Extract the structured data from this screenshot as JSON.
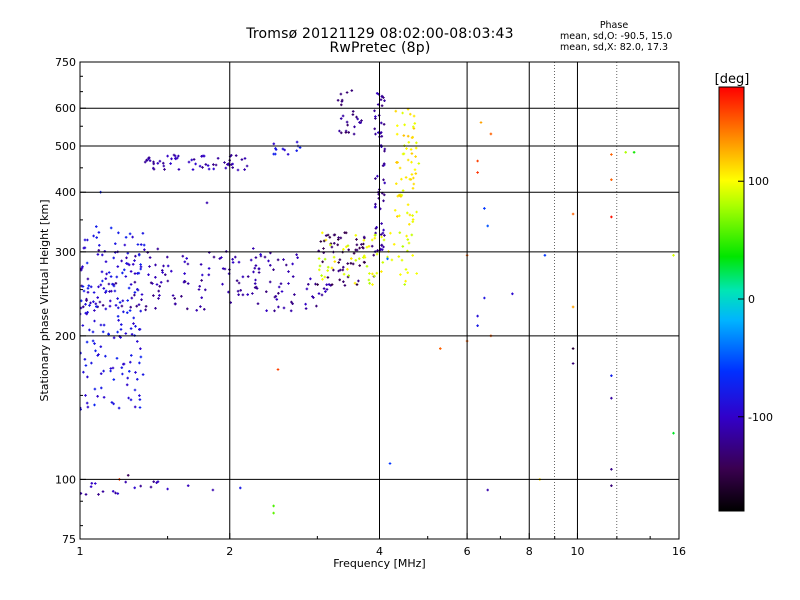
{
  "title": {
    "line1": "Tromsø 20121129 08:02:00-08:03:43",
    "line2": "RwPretec (8p)"
  },
  "phase_box": {
    "header": "Phase",
    "line_o": "mean, sd,O: -90.5, 15.0",
    "line_x": "mean, sd,X:  82.0, 17.3"
  },
  "colorbar": {
    "label": "[deg]",
    "ticks": [
      "100",
      "0",
      "-100"
    ]
  },
  "chart_data": {
    "type": "scatter",
    "xlabel": "Frequency [MHz]",
    "ylabel": "Stationary phase Virtual Height [km]",
    "xscale": "log",
    "yscale": "log",
    "xlim": [
      1,
      16
    ],
    "ylim": [
      75,
      750
    ],
    "x_ticks": [
      "1",
      "2",
      "4",
      "6",
      "8",
      "10",
      "16"
    ],
    "y_ticks": [
      "75",
      "100",
      "200",
      "300",
      "400",
      "500",
      "600",
      "750"
    ],
    "x_gridlines_mhz": [
      2,
      4,
      6,
      8,
      10
    ],
    "x_minor_gridlines_mhz": [
      9,
      12
    ],
    "y_gridlines_km": [
      100,
      200,
      300,
      400,
      500,
      600
    ],
    "colormap": "rainbow phase, -180 (black) to +180 (red)",
    "phase_range_deg": [
      -180,
      180
    ],
    "clusters": [
      {
        "name": "",
        "f_range_mhz": [
          1.0,
          2.75
        ],
        "h_range_km": [
          265,
          305
        ],
        "phase_deg": -110,
        "density": 80
      },
      {
        "name": "",
        "f_range_mhz": [
          1.0,
          3.2
        ],
        "h_range_km": [
          225,
          265
        ],
        "phase_deg": -115,
        "density": 110
      },
      {
        "name": "",
        "f_range_mhz": [
          1.0,
          1.35
        ],
        "h_range_km": [
          140,
          340
        ],
        "phase_deg": -85,
        "density": 170
      },
      {
        "name": "",
        "f_range_mhz": [
          1.35,
          2.2
        ],
        "h_range_km": [
          445,
          480
        ],
        "phase_deg": -110,
        "density": 60
      },
      {
        "name": "",
        "f_range_mhz": [
          2.4,
          2.8
        ],
        "h_range_km": [
          480,
          510
        ],
        "phase_deg": -85,
        "density": 12
      },
      {
        "name": "",
        "f_range_mhz": [
          3.0,
          3.9
        ],
        "h_range_km": [
          255,
          330
        ],
        "phase_deg": -140,
        "density": 60
      },
      {
        "name": "",
        "f_range_mhz": [
          3.3,
          3.7
        ],
        "h_range_km": [
          520,
          660
        ],
        "phase_deg": -125,
        "density": 25
      },
      {
        "name": "",
        "f_range_mhz": [
          3.9,
          4.1
        ],
        "h_range_km": [
          300,
          660
        ],
        "phase_deg": -115,
        "density": 60
      },
      {
        "name": "",
        "f_range_mhz": [
          3.0,
          4.8
        ],
        "h_range_km": [
          255,
          330
        ],
        "phase_deg": 95,
        "density": 70
      },
      {
        "name": "",
        "f_range_mhz": [
          4.3,
          4.8
        ],
        "h_range_km": [
          340,
          600
        ],
        "phase_deg": 105,
        "density": 60
      },
      {
        "name": "",
        "f_range_mhz": [
          1.0,
          1.6
        ],
        "h_range_km": [
          93,
          99
        ],
        "phase_deg": -110,
        "density": 18
      }
    ],
    "scattered_points": [
      {
        "f": 2.45,
        "h": 88,
        "phase": 55
      },
      {
        "f": 2.45,
        "h": 85,
        "phase": 60
      },
      {
        "f": 2.5,
        "h": 170,
        "phase": 160
      },
      {
        "f": 4.15,
        "h": 290,
        "phase": -40
      },
      {
        "f": 4.2,
        "h": 108,
        "phase": -60
      },
      {
        "f": 5.3,
        "h": 188,
        "phase": 150
      },
      {
        "f": 6.0,
        "h": 295,
        "phase": 150
      },
      {
        "f": 6.0,
        "h": 195,
        "phase": 150
      },
      {
        "f": 6.3,
        "h": 440,
        "phase": 165
      },
      {
        "f": 6.3,
        "h": 465,
        "phase": 160
      },
      {
        "f": 6.4,
        "h": 560,
        "phase": 130
      },
      {
        "f": 6.5,
        "h": 370,
        "phase": -60
      },
      {
        "f": 6.5,
        "h": 240,
        "phase": -85
      },
      {
        "f": 6.6,
        "h": 340,
        "phase": -50
      },
      {
        "f": 6.6,
        "h": 95,
        "phase": -110
      },
      {
        "f": 6.7,
        "h": 530,
        "phase": 150
      },
      {
        "f": 6.7,
        "h": 200,
        "phase": 150
      },
      {
        "f": 6.3,
        "h": 220,
        "phase": -90
      },
      {
        "f": 6.3,
        "h": 210,
        "phase": -80
      },
      {
        "f": 7.4,
        "h": 245,
        "phase": -95
      },
      {
        "f": 8.4,
        "h": 100,
        "phase": 110
      },
      {
        "f": 8.6,
        "h": 295,
        "phase": -60
      },
      {
        "f": 9.8,
        "h": 360,
        "phase": 150
      },
      {
        "f": 9.8,
        "h": 230,
        "phase": 130
      },
      {
        "f": 9.8,
        "h": 188,
        "phase": -155
      },
      {
        "f": 9.8,
        "h": 175,
        "phase": -130
      },
      {
        "f": 11.7,
        "h": 480,
        "phase": 150
      },
      {
        "f": 11.7,
        "h": 425,
        "phase": 150
      },
      {
        "f": 11.7,
        "h": 355,
        "phase": 175
      },
      {
        "f": 11.7,
        "h": 165,
        "phase": -75
      },
      {
        "f": 11.7,
        "h": 148,
        "phase": -115
      },
      {
        "f": 11.7,
        "h": 105,
        "phase": -125
      },
      {
        "f": 11.7,
        "h": 97,
        "phase": -130
      },
      {
        "f": 12.5,
        "h": 485,
        "phase": 80
      },
      {
        "f": 13.0,
        "h": 485,
        "phase": 40
      },
      {
        "f": 15.6,
        "h": 295,
        "phase": 90
      },
      {
        "f": 15.6,
        "h": 125,
        "phase": 30
      },
      {
        "f": 1.2,
        "h": 100,
        "phase": 160
      },
      {
        "f": 1.25,
        "h": 102,
        "phase": -140
      },
      {
        "f": 1.1,
        "h": 400,
        "phase": -70
      },
      {
        "f": 1.8,
        "h": 380,
        "phase": -110
      },
      {
        "f": 1.65,
        "h": 97,
        "phase": -105
      },
      {
        "f": 2.1,
        "h": 96,
        "phase": -80
      },
      {
        "f": 1.85,
        "h": 95,
        "phase": -110
      }
    ]
  }
}
